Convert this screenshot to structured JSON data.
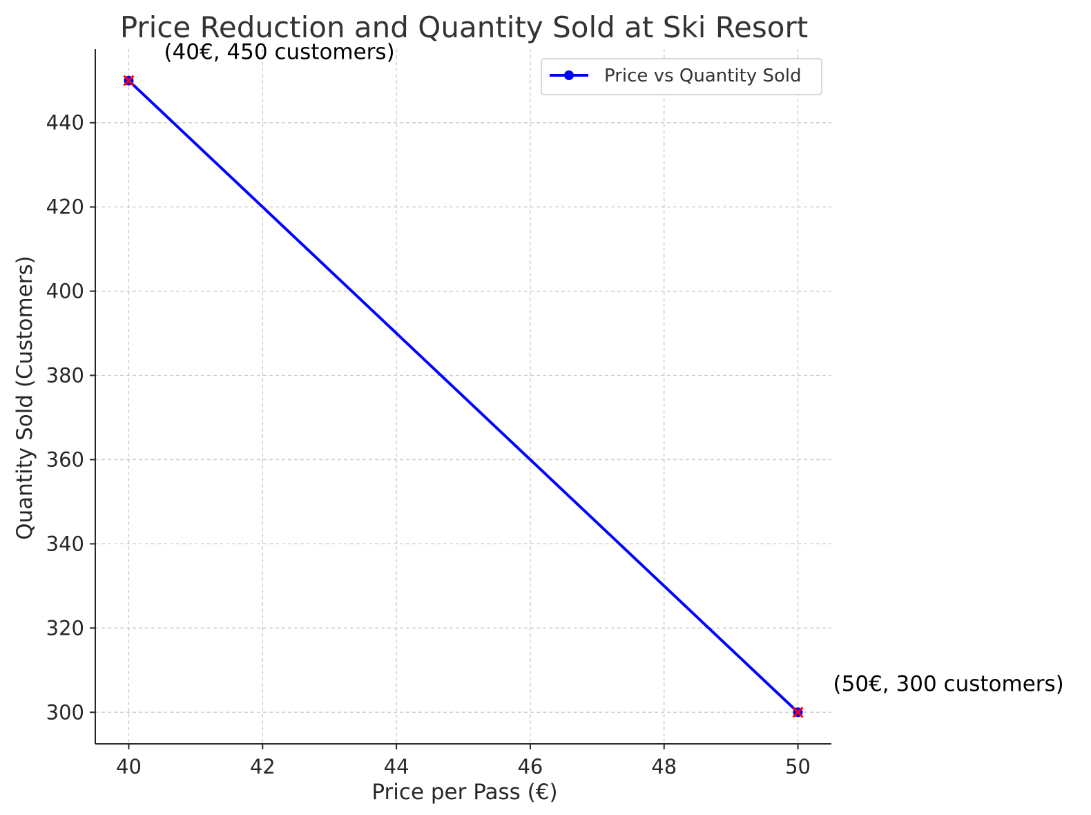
{
  "chart_data": {
    "type": "line",
    "title": "Price Reduction and Quantity Sold at Ski Resort",
    "xlabel": "Price per Pass (€)",
    "ylabel": "Quantity Sold (Customers)",
    "xlim": [
      39.5,
      50.5
    ],
    "ylim": [
      292.5,
      457.5
    ],
    "xticks": [
      40,
      42,
      44,
      46,
      48,
      50
    ],
    "yticks": [
      300,
      320,
      340,
      360,
      380,
      400,
      420,
      440
    ],
    "grid": true,
    "legend_position": "upper right",
    "series": [
      {
        "name": "Price vs Quantity Sold",
        "color": "#0000ff",
        "marker_color": "#ff0000",
        "x": [
          40,
          50
        ],
        "y": [
          450,
          300
        ]
      }
    ],
    "annotations": [
      {
        "x": 40,
        "y": 450,
        "text": "(40€, 450 customers)"
      },
      {
        "x": 50,
        "y": 300,
        "text": "(50€, 300 customers)"
      }
    ]
  }
}
